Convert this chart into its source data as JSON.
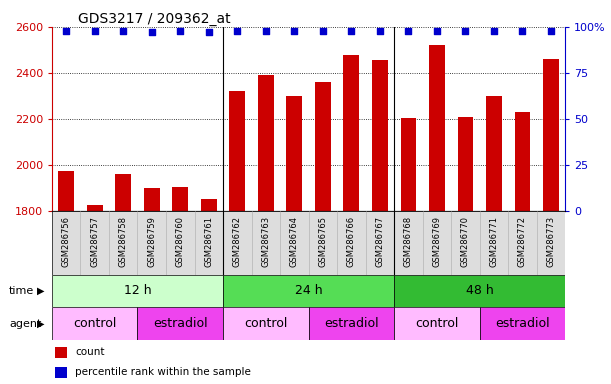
{
  "title": "GDS3217 / 209362_at",
  "samples": [
    "GSM286756",
    "GSM286757",
    "GSM286758",
    "GSM286759",
    "GSM286760",
    "GSM286761",
    "GSM286762",
    "GSM286763",
    "GSM286764",
    "GSM286765",
    "GSM286766",
    "GSM286767",
    "GSM286768",
    "GSM286769",
    "GSM286770",
    "GSM286771",
    "GSM286772",
    "GSM286773"
  ],
  "counts": [
    1975,
    1825,
    1960,
    1900,
    1905,
    1855,
    2320,
    2390,
    2300,
    2360,
    2480,
    2455,
    2205,
    2520,
    2210,
    2300,
    2230,
    2460
  ],
  "percentile_ranks": [
    98,
    98,
    98,
    97,
    98,
    97,
    98,
    98,
    98,
    98,
    98,
    98,
    98,
    98,
    98,
    98,
    98,
    98
  ],
  "bar_color": "#cc0000",
  "dot_color": "#0000cc",
  "ylim_left": [
    1800,
    2600
  ],
  "ylim_right": [
    0,
    100
  ],
  "yticks_left": [
    1800,
    2000,
    2200,
    2400,
    2600
  ],
  "yticks_right": [
    0,
    25,
    50,
    75,
    100
  ],
  "time_groups": [
    {
      "label": "12 h",
      "start": 0,
      "end": 6,
      "color": "#ccffcc"
    },
    {
      "label": "24 h",
      "start": 6,
      "end": 12,
      "color": "#55dd55"
    },
    {
      "label": "48 h",
      "start": 12,
      "end": 18,
      "color": "#33bb33"
    }
  ],
  "agent_groups": [
    {
      "label": "control",
      "start": 0,
      "end": 3,
      "color": "#ffbbff"
    },
    {
      "label": "estradiol",
      "start": 3,
      "end": 6,
      "color": "#ee44ee"
    },
    {
      "label": "control",
      "start": 6,
      "end": 9,
      "color": "#ffbbff"
    },
    {
      "label": "estradiol",
      "start": 9,
      "end": 12,
      "color": "#ee44ee"
    },
    {
      "label": "control",
      "start": 12,
      "end": 15,
      "color": "#ffbbff"
    },
    {
      "label": "estradiol",
      "start": 15,
      "end": 18,
      "color": "#ee44ee"
    }
  ],
  "legend_items": [
    {
      "label": "count",
      "color": "#cc0000"
    },
    {
      "label": "percentile rank within the sample",
      "color": "#0000cc"
    }
  ],
  "background_color": "#ffffff",
  "left_axis_color": "#cc0000",
  "right_axis_color": "#0000cc",
  "xticklabel_bg": "#dddddd"
}
